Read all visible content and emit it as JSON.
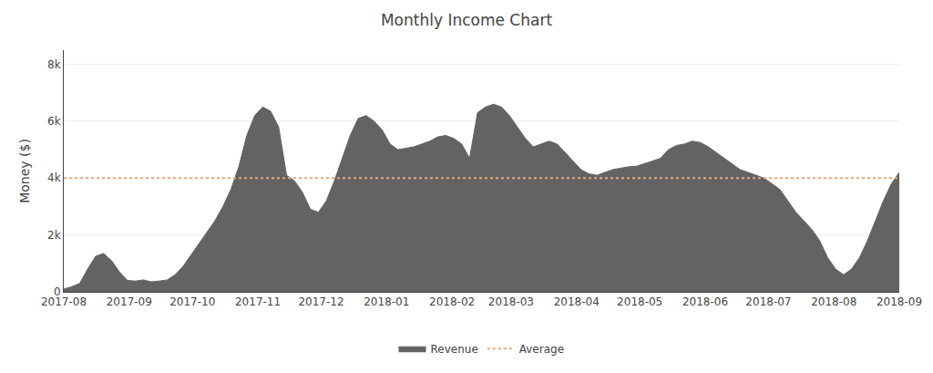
{
  "chart_data": {
    "type": "area",
    "title": "Monthly Income Chart",
    "ylabel": "Money ($)",
    "series": [
      {
        "name": "Revenue",
        "color": "#636363",
        "marker": "circle",
        "values": [
          100,
          180,
          300,
          800,
          1250,
          1350,
          1100,
          700,
          400,
          380,
          420,
          350,
          380,
          420,
          600,
          900,
          1300,
          1700,
          2100,
          2500,
          3000,
          3600,
          4400,
          5500,
          6200,
          6500,
          6350,
          5800,
          4100,
          3900,
          3500,
          2900,
          2800,
          3200,
          3900,
          4700,
          5500,
          6100,
          6200,
          6000,
          5700,
          5200,
          5000,
          5050,
          5100,
          5200,
          5300,
          5450,
          5500,
          5400,
          5200,
          4700,
          6300,
          6500,
          6600,
          6500,
          6200,
          5800,
          5400,
          5100,
          5200,
          5300,
          5200,
          4900,
          4600,
          4300,
          4150,
          4100,
          4200,
          4300,
          4350,
          4400,
          4420,
          4500,
          4600,
          4700,
          5000,
          5150,
          5200,
          5300,
          5250,
          5100,
          4900,
          4700,
          4500,
          4300,
          4200,
          4100,
          4000,
          3800,
          3600,
          3200,
          2800,
          2500,
          2200,
          1800,
          1200,
          800,
          600,
          800,
          1200,
          1800,
          2500,
          3200,
          3800,
          4200
        ]
      }
    ],
    "average_line": {
      "name": "Average",
      "value": 4000,
      "color": "#e8a87c",
      "line_style": "dotted"
    },
    "xlim": [
      "2017-08",
      "2018-09"
    ],
    "xticks": [
      "2017-08",
      "2017-09",
      "2017-10",
      "2017-11",
      "2017-12",
      "2018-01",
      "2018-02",
      "2018-03",
      "2018-04",
      "2018-05",
      "2018-06",
      "2018-07",
      "2018-08",
      "2018-09"
    ],
    "ylim": [
      0,
      8500
    ],
    "yticks": [
      0,
      {
        "value": 2000,
        "label": "2k"
      },
      {
        "value": 4000,
        "label": "4k"
      },
      {
        "value": 6000,
        "label": "6k"
      },
      {
        "value": 8000,
        "label": "8k"
      }
    ],
    "grid": "y",
    "legend": "bottom"
  }
}
